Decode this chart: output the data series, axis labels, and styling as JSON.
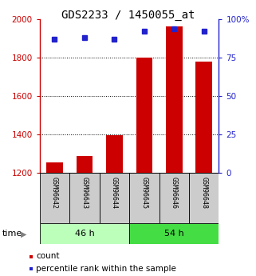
{
  "title": "GDS2233 / 1450055_at",
  "samples": [
    "GSM96642",
    "GSM96643",
    "GSM96644",
    "GSM96645",
    "GSM96646",
    "GSM96648"
  ],
  "counts": [
    1252,
    1285,
    1395,
    1800,
    1962,
    1778
  ],
  "percentiles": [
    87,
    88,
    87,
    92,
    94,
    92
  ],
  "ylim_left": [
    1200,
    2000
  ],
  "ylim_right": [
    0,
    100
  ],
  "yticks_left": [
    1200,
    1400,
    1600,
    1800,
    2000
  ],
  "yticks_right": [
    0,
    25,
    50,
    75,
    100
  ],
  "ytick_right_labels": [
    "0",
    "25",
    "50",
    "75",
    "100%"
  ],
  "groups": [
    {
      "label": "46 h",
      "indices": [
        0,
        1,
        2
      ],
      "color": "#bbffbb"
    },
    {
      "label": "54 h",
      "indices": [
        3,
        4,
        5
      ],
      "color": "#44dd44"
    }
  ],
  "bar_color": "#cc0000",
  "dot_color": "#2222cc",
  "axis_color_left": "#cc0000",
  "axis_color_right": "#2222cc",
  "background_sample": "#cccccc",
  "grid_color": "#000000",
  "title_fontsize": 10,
  "tick_fontsize": 7.5,
  "sample_fontsize": 6,
  "group_fontsize": 8,
  "legend_fontsize": 7.5,
  "gridlines_at": [
    1400,
    1600,
    1800
  ]
}
